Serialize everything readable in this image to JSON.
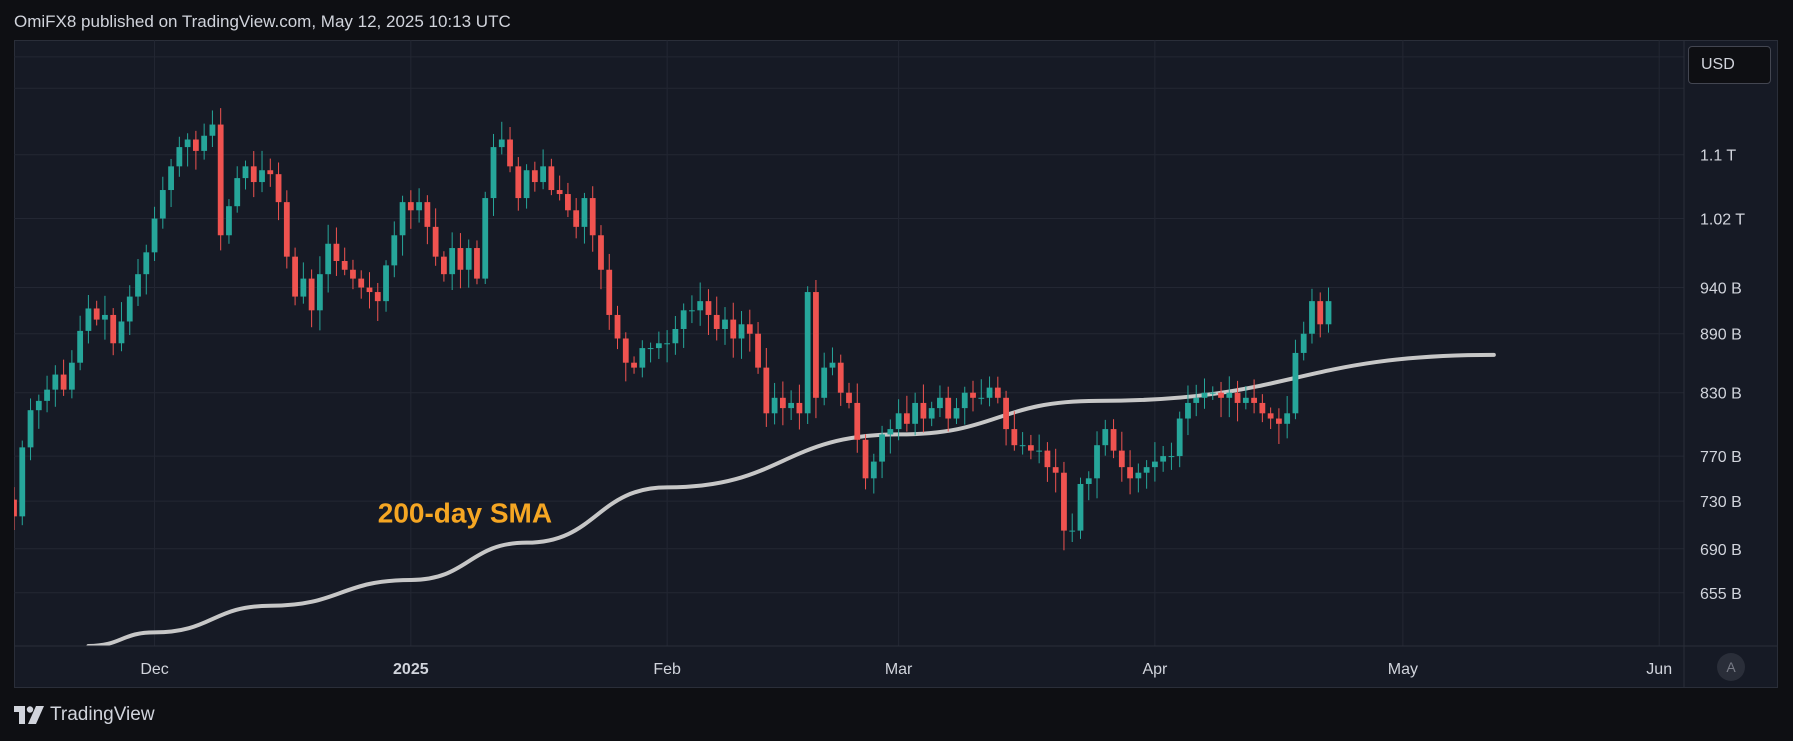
{
  "header": {
    "text": "OmiFX8 published on TradingView.com, May 12, 2025 10:13 UTC"
  },
  "toolbar": {
    "currency": "USD",
    "auto_label": "A"
  },
  "brand": {
    "name": "TradingView"
  },
  "chart_data": {
    "type": "candlestick",
    "title": "",
    "y_scale": "log",
    "ylim": [
      615,
      1260
    ],
    "y_ticks": [
      {
        "label": "1.1 T",
        "value": 1100
      },
      {
        "label": "1.02 T",
        "value": 1020
      },
      {
        "label": "940 B",
        "value": 940
      },
      {
        "label": "890 B",
        "value": 890
      },
      {
        "label": "830 B",
        "value": 830
      },
      {
        "label": "770 B",
        "value": 770
      },
      {
        "label": "730 B",
        "value": 730
      },
      {
        "label": "690 B",
        "value": 690
      },
      {
        "label": "655 B",
        "value": 655
      }
    ],
    "x_ticks": [
      {
        "label": "Dec",
        "date": "2024-12-01"
      },
      {
        "label": "2025",
        "date": "2025-01-01"
      },
      {
        "label": "Feb",
        "date": "2025-02-01"
      },
      {
        "label": "Mar",
        "date": "2025-03-01"
      },
      {
        "label": "Apr",
        "date": "2025-04-01"
      },
      {
        "label": "May",
        "date": "2025-05-01"
      },
      {
        "label": "Jun",
        "date": "2025-06-01"
      }
    ],
    "xlim": [
      "2024-11-14",
      "2025-06-04"
    ],
    "colors": {
      "up": "#26a69a",
      "down": "#ef5350",
      "sma": "#c7c7c7",
      "annotation": "#f5a623"
    },
    "candles": {
      "start_date": "2024-11-14",
      "close": [
        717,
        778,
        813,
        822,
        833,
        848,
        833,
        860,
        893,
        917,
        905,
        910,
        880,
        903,
        930,
        955,
        980,
        1020,
        1055,
        1085,
        1110,
        1120,
        1105,
        1125,
        1140,
        1000,
        1035,
        1070,
        1085,
        1065,
        1080,
        1075,
        1040,
        975,
        930,
        950,
        915,
        955,
        990,
        970,
        960,
        950,
        940,
        935,
        925,
        965,
        1000,
        1040,
        1030,
        1040,
        1010,
        975,
        955,
        985,
        960,
        985,
        950,
        1045,
        1110,
        1120,
        1085,
        1045,
        1080,
        1065,
        1085,
        1055,
        1050,
        1030,
        1010,
        1045,
        1000,
        960,
        910,
        885,
        860,
        855,
        875,
        875,
        880,
        880,
        895,
        915,
        915,
        925,
        910,
        895,
        905,
        885,
        900,
        890,
        855,
        810,
        825,
        815,
        820,
        810,
        935,
        825,
        855,
        860,
        830,
        820,
        785,
        750,
        765,
        790,
        795,
        810,
        800,
        820,
        805,
        815,
        825,
        805,
        815,
        830,
        825,
        825,
        835,
        825,
        795,
        780,
        780,
        775,
        775,
        760,
        755,
        705,
        705,
        745,
        750,
        780,
        795,
        775,
        760,
        750,
        755,
        760,
        765,
        770,
        770,
        805,
        820,
        825,
        830,
        830,
        825,
        830,
        820,
        825,
        820,
        810,
        805,
        800,
        810,
        870,
        890,
        925,
        900,
        925
      ],
      "last_close": 925
    },
    "sma": {
      "name": "200-day SMA",
      "points": [
        {
          "date": "2024-11-23",
          "value": 615
        },
        {
          "date": "2024-12-01",
          "value": 625
        },
        {
          "date": "2024-12-15",
          "value": 645
        },
        {
          "date": "2025-01-01",
          "value": 665
        },
        {
          "date": "2025-01-15",
          "value": 695
        },
        {
          "date": "2025-02-01",
          "value": 742
        },
        {
          "date": "2025-03-01",
          "value": 790
        },
        {
          "date": "2025-03-25",
          "value": 822
        },
        {
          "date": "2025-05-12",
          "value": 868
        }
      ]
    },
    "annotation": {
      "text": "200-day SMA",
      "date": "2024-12-28",
      "value": 712
    }
  }
}
